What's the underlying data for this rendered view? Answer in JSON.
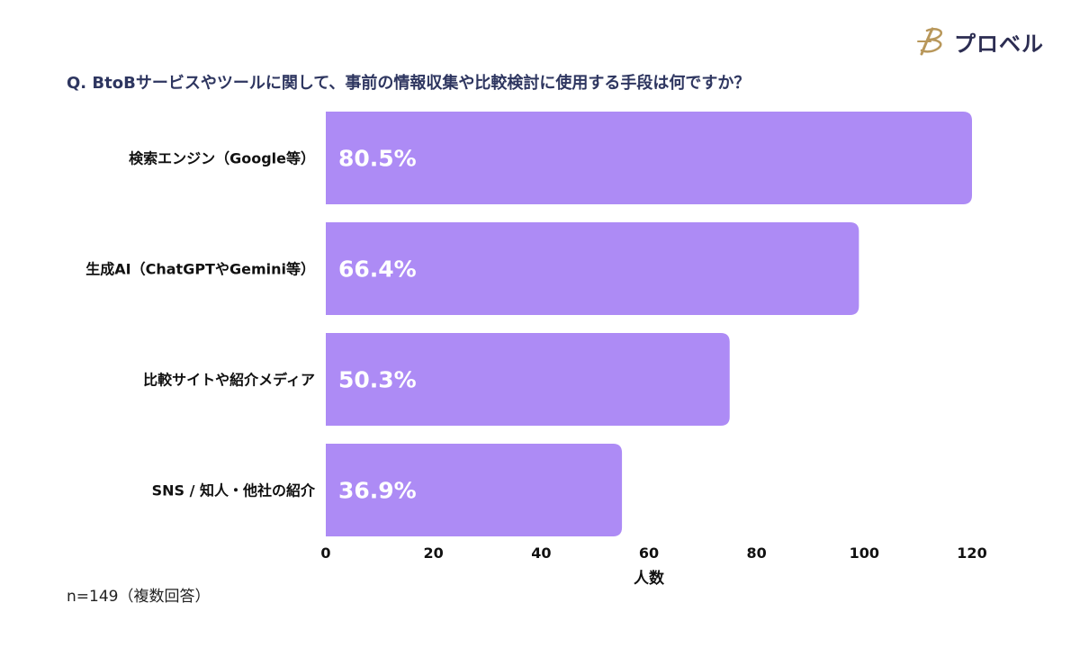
{
  "brand": {
    "name": "プロベル",
    "color": "#2c2d52",
    "mark_color": "#b8975a"
  },
  "question": "Q. BtoBサービスやツールに関して、事前の情報収集や比較検討に使用する手段は何ですか？",
  "note": "n=149（複数回答）",
  "colors": {
    "bar": "#ad8bf5",
    "bar_label": "#ffffff",
    "text": "#111111"
  },
  "chart_data": {
    "type": "bar",
    "orientation": "horizontal",
    "categories": [
      "検索エンジン（Google等）",
      "生成AI（ChatGPTやGemini等）",
      "比較サイトや紹介メディア",
      "SNS / 知人・他社の紹介"
    ],
    "values": [
      120,
      99,
      75,
      55
    ],
    "data_labels": [
      "80.5%",
      "66.4%",
      "50.3%",
      "36.9%"
    ],
    "xlabel": "人数",
    "xlim": [
      0,
      120
    ],
    "xticks": [
      0,
      20,
      40,
      60,
      80,
      100,
      120
    ],
    "grid": false,
    "legend": "none"
  }
}
